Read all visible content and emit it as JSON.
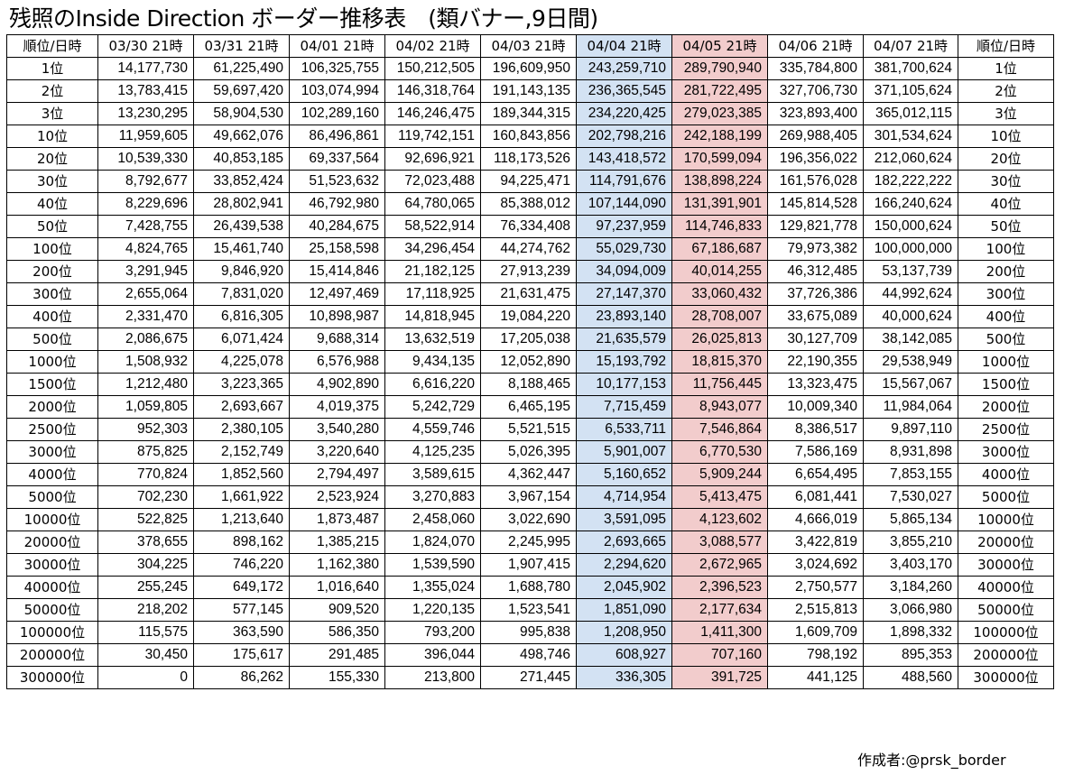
{
  "title": "残照のInside Direction ボーダー推移表　(類バナー,9日間)",
  "credit": "作成者:@prsk_border",
  "highlight_colors": {
    "blue": "#d3e2f3",
    "red": "#f2cccc"
  },
  "table": {
    "corner_left": "順位/日時",
    "corner_right": "順位/日時",
    "columns": [
      {
        "label": "03/30 21時",
        "highlight": ""
      },
      {
        "label": "03/31 21時",
        "highlight": ""
      },
      {
        "label": "04/01 21時",
        "highlight": ""
      },
      {
        "label": "04/02 21時",
        "highlight": ""
      },
      {
        "label": "04/03 21時",
        "highlight": ""
      },
      {
        "label": "04/04 21時",
        "highlight": "blue"
      },
      {
        "label": "04/05 21時",
        "highlight": "red"
      },
      {
        "label": "04/06 21時",
        "highlight": ""
      },
      {
        "label": "04/07 21時",
        "highlight": ""
      }
    ],
    "rows": [
      {
        "rank": "1位",
        "values": [
          "14,177,730",
          "61,225,490",
          "106,325,755",
          "150,212,505",
          "196,609,950",
          "243,259,710",
          "289,790,940",
          "335,784,800",
          "381,700,624"
        ]
      },
      {
        "rank": "2位",
        "values": [
          "13,783,415",
          "59,697,420",
          "103,074,994",
          "146,318,764",
          "191,143,135",
          "236,365,545",
          "281,722,495",
          "327,706,730",
          "371,105,624"
        ]
      },
      {
        "rank": "3位",
        "values": [
          "13,230,295",
          "58,904,530",
          "102,289,160",
          "146,246,475",
          "189,344,315",
          "234,220,425",
          "279,023,385",
          "323,893,400",
          "365,012,115"
        ]
      },
      {
        "rank": "10位",
        "values": [
          "11,959,605",
          "49,662,076",
          "86,496,861",
          "119,742,151",
          "160,843,856",
          "202,798,216",
          "242,188,199",
          "269,988,405",
          "301,534,624"
        ]
      },
      {
        "rank": "20位",
        "values": [
          "10,539,330",
          "40,853,185",
          "69,337,564",
          "92,696,921",
          "118,173,526",
          "143,418,572",
          "170,599,094",
          "196,356,022",
          "212,060,624"
        ]
      },
      {
        "rank": "30位",
        "values": [
          "8,792,677",
          "33,852,424",
          "51,523,632",
          "72,023,488",
          "94,225,471",
          "114,791,676",
          "138,898,224",
          "161,576,028",
          "182,222,222"
        ]
      },
      {
        "rank": "40位",
        "values": [
          "8,229,696",
          "28,802,941",
          "46,792,980",
          "64,780,065",
          "85,388,012",
          "107,144,090",
          "131,391,901",
          "145,814,528",
          "166,240,624"
        ]
      },
      {
        "rank": "50位",
        "values": [
          "7,428,755",
          "26,439,538",
          "40,284,675",
          "58,522,914",
          "76,334,408",
          "97,237,959",
          "114,746,833",
          "129,821,778",
          "150,000,624"
        ]
      },
      {
        "rank": "100位",
        "values": [
          "4,824,765",
          "15,461,740",
          "25,158,598",
          "34,296,454",
          "44,274,762",
          "55,029,730",
          "67,186,687",
          "79,973,382",
          "100,000,000"
        ]
      },
      {
        "rank": "200位",
        "values": [
          "3,291,945",
          "9,846,920",
          "15,414,846",
          "21,182,125",
          "27,913,239",
          "34,094,009",
          "40,014,255",
          "46,312,485",
          "53,137,739"
        ]
      },
      {
        "rank": "300位",
        "values": [
          "2,655,064",
          "7,831,020",
          "12,497,469",
          "17,118,925",
          "21,631,475",
          "27,147,370",
          "33,060,432",
          "37,726,386",
          "44,992,624"
        ]
      },
      {
        "rank": "400位",
        "values": [
          "2,331,470",
          "6,816,305",
          "10,898,987",
          "14,818,945",
          "19,084,220",
          "23,893,140",
          "28,708,007",
          "33,675,089",
          "40,000,624"
        ]
      },
      {
        "rank": "500位",
        "values": [
          "2,086,675",
          "6,071,424",
          "9,688,314",
          "13,632,519",
          "17,205,038",
          "21,635,579",
          "26,025,813",
          "30,127,709",
          "38,142,085"
        ]
      },
      {
        "rank": "1000位",
        "values": [
          "1,508,932",
          "4,225,078",
          "6,576,988",
          "9,434,135",
          "12,052,890",
          "15,193,792",
          "18,815,370",
          "22,190,355",
          "29,538,949"
        ]
      },
      {
        "rank": "1500位",
        "values": [
          "1,212,480",
          "3,223,365",
          "4,902,890",
          "6,616,220",
          "8,188,465",
          "10,177,153",
          "11,756,445",
          "13,323,475",
          "15,567,067"
        ]
      },
      {
        "rank": "2000位",
        "values": [
          "1,059,805",
          "2,693,667",
          "4,019,375",
          "5,242,729",
          "6,465,195",
          "7,715,459",
          "8,943,077",
          "10,009,340",
          "11,984,064"
        ]
      },
      {
        "rank": "2500位",
        "values": [
          "952,303",
          "2,380,105",
          "3,540,280",
          "4,559,746",
          "5,521,515",
          "6,533,711",
          "7,546,864",
          "8,386,517",
          "9,897,110"
        ]
      },
      {
        "rank": "3000位",
        "values": [
          "875,825",
          "2,152,749",
          "3,220,640",
          "4,125,235",
          "5,026,395",
          "5,901,007",
          "6,770,530",
          "7,586,169",
          "8,931,898"
        ]
      },
      {
        "rank": "4000位",
        "values": [
          "770,824",
          "1,852,560",
          "2,794,497",
          "3,589,615",
          "4,362,447",
          "5,160,652",
          "5,909,244",
          "6,654,495",
          "7,853,155"
        ]
      },
      {
        "rank": "5000位",
        "values": [
          "702,230",
          "1,661,922",
          "2,523,924",
          "3,270,883",
          "3,967,154",
          "4,714,954",
          "5,413,475",
          "6,081,441",
          "7,530,027"
        ]
      },
      {
        "rank": "10000位",
        "values": [
          "522,825",
          "1,213,640",
          "1,873,487",
          "2,458,060",
          "3,022,690",
          "3,591,095",
          "4,123,602",
          "4,666,019",
          "5,865,134"
        ]
      },
      {
        "rank": "20000位",
        "values": [
          "378,655",
          "898,162",
          "1,385,215",
          "1,824,070",
          "2,245,995",
          "2,693,665",
          "3,088,577",
          "3,422,819",
          "3,855,210"
        ]
      },
      {
        "rank": "30000位",
        "values": [
          "304,225",
          "746,220",
          "1,162,380",
          "1,539,590",
          "1,907,415",
          "2,294,620",
          "2,672,965",
          "3,024,692",
          "3,403,170"
        ]
      },
      {
        "rank": "40000位",
        "values": [
          "255,245",
          "649,172",
          "1,016,640",
          "1,355,024",
          "1,688,780",
          "2,045,902",
          "2,396,523",
          "2,750,577",
          "3,184,260"
        ]
      },
      {
        "rank": "50000位",
        "values": [
          "218,202",
          "577,145",
          "909,520",
          "1,220,135",
          "1,523,541",
          "1,851,090",
          "2,177,634",
          "2,515,813",
          "3,066,980"
        ]
      },
      {
        "rank": "100000位",
        "values": [
          "115,575",
          "363,590",
          "586,350",
          "793,200",
          "995,838",
          "1,208,950",
          "1,411,300",
          "1,609,709",
          "1,898,332"
        ]
      },
      {
        "rank": "200000位",
        "values": [
          "30,450",
          "175,617",
          "291,485",
          "396,044",
          "498,746",
          "608,927",
          "707,160",
          "798,192",
          "895,353"
        ]
      },
      {
        "rank": "300000位",
        "values": [
          "0",
          "86,262",
          "155,330",
          "213,800",
          "271,445",
          "336,305",
          "391,725",
          "441,125",
          "488,560"
        ]
      }
    ]
  }
}
